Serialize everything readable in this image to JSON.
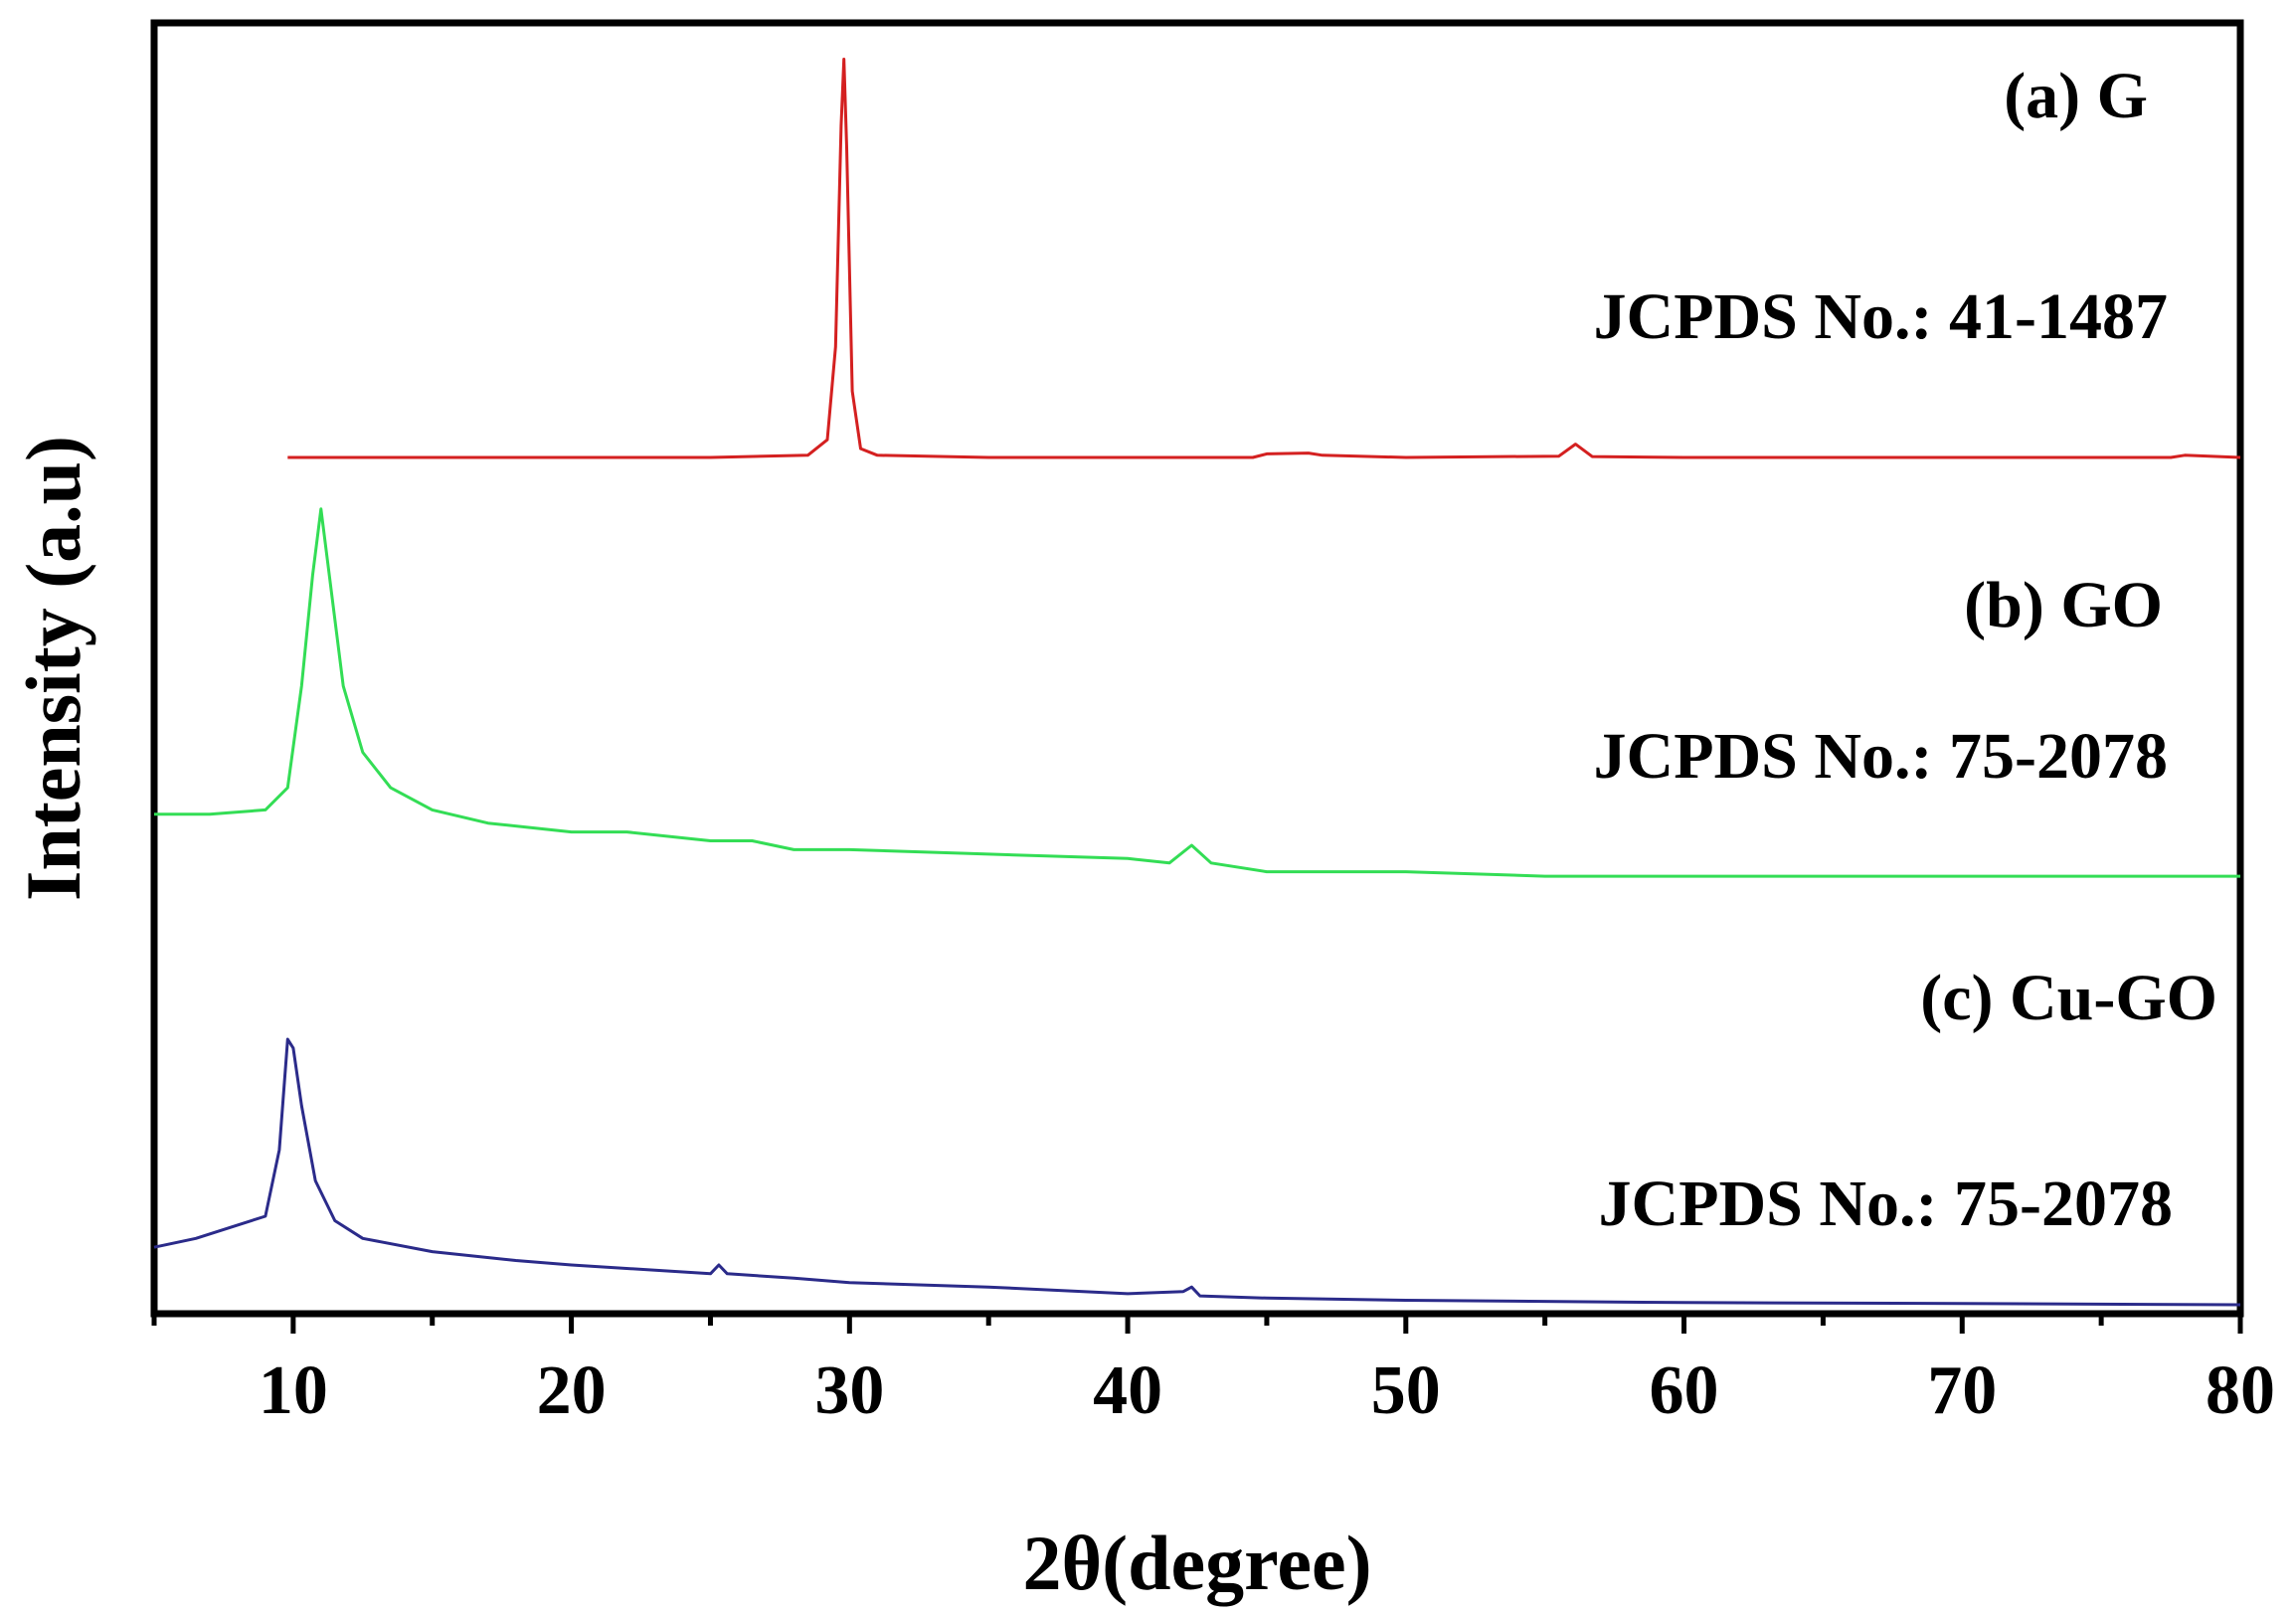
{
  "chart_data": {
    "type": "line",
    "title": "",
    "xlabel": "2θ(degree)",
    "ylabel": "Intensity (a.u)",
    "xlim": [
      5,
      80
    ],
    "ylim": [
      0,
      3
    ],
    "x_ticks": [
      10,
      20,
      30,
      40,
      50,
      60,
      70,
      80
    ],
    "x_tick_labels": [
      "10",
      "20",
      "30",
      "40",
      "50",
      "60",
      "70",
      "80"
    ],
    "y_ticks_shown": false,
    "grid": false,
    "legend": "none",
    "series": [
      {
        "name": "(a) G",
        "annotation": "JCPDS No.: 41-1487",
        "color": "#d42020",
        "baseline_offset": 2.0,
        "x": [
          9.8,
          15,
          20,
          25,
          28.5,
          29.2,
          29.5,
          29.7,
          29.8,
          29.9,
          30.1,
          30.4,
          31,
          35,
          40,
          44.5,
          45,
          46.5,
          47,
          50,
          55.5,
          56.1,
          56.7,
          60,
          70,
          77.5,
          78,
          80
        ],
        "y": [
          0.0,
          0.0,
          0.0,
          0.0,
          0.005,
          0.04,
          0.25,
          0.75,
          0.9,
          0.7,
          0.15,
          0.02,
          0.005,
          0.0,
          0.0,
          0.0,
          0.008,
          0.01,
          0.005,
          0.0,
          0.003,
          0.03,
          0.002,
          0.0,
          0.0,
          0.0,
          0.005,
          0.0
        ]
      },
      {
        "name": "(b) GO",
        "annotation": "JCPDS No.: 75-2078",
        "color": "#33dd55",
        "baseline_offset": 1.0,
        "x": [
          5,
          7,
          9,
          9.8,
          10.3,
          10.7,
          11,
          11.3,
          11.8,
          12.5,
          13.5,
          15,
          17,
          20,
          22,
          25,
          26.5,
          28,
          30,
          35,
          40,
          41.5,
          42.3,
          43,
          45,
          50,
          55,
          60,
          70,
          80
        ],
        "y": [
          0.16,
          0.16,
          0.17,
          0.22,
          0.45,
          0.7,
          0.85,
          0.7,
          0.45,
          0.3,
          0.22,
          0.17,
          0.14,
          0.12,
          0.12,
          0.1,
          0.1,
          0.08,
          0.08,
          0.07,
          0.06,
          0.05,
          0.09,
          0.05,
          0.03,
          0.03,
          0.02,
          0.02,
          0.02,
          0.02
        ]
      },
      {
        "name": "(c) Cu-GO",
        "annotation": "JCPDS No.: 75-2078",
        "color": "#2b2b8a",
        "baseline_offset": 0.0,
        "x": [
          5,
          6.5,
          8,
          9,
          9.5,
          9.8,
          10,
          10.3,
          10.8,
          11.5,
          12.5,
          15,
          18,
          20,
          25,
          25.3,
          25.6,
          28,
          30,
          35,
          40,
          42,
          42.3,
          42.6,
          45,
          50,
          60,
          70,
          80
        ],
        "y": [
          0.13,
          0.15,
          0.18,
          0.2,
          0.35,
          0.6,
          0.58,
          0.45,
          0.28,
          0.19,
          0.15,
          0.12,
          0.1,
          0.09,
          0.07,
          0.09,
          0.07,
          0.06,
          0.05,
          0.04,
          0.025,
          0.03,
          0.04,
          0.02,
          0.015,
          0.01,
          0.005,
          0.003,
          0.0
        ]
      }
    ]
  }
}
